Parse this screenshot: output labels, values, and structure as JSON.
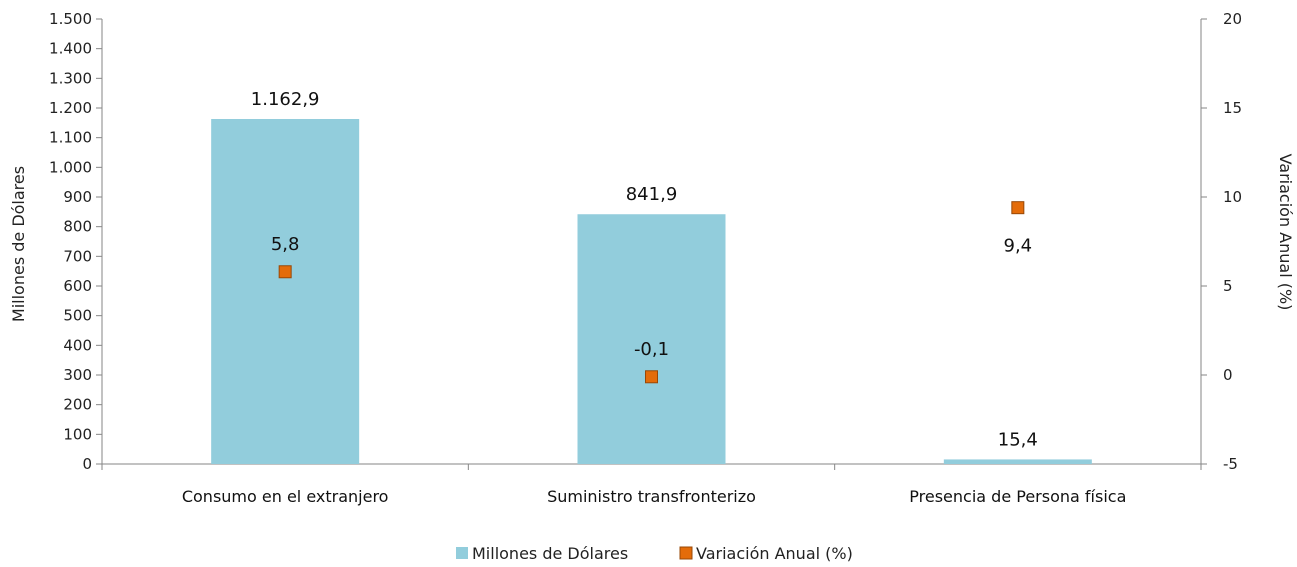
{
  "chart_data": {
    "type": "bar",
    "categories": [
      "Consumo en el extranjero",
      "Suministro transfronterizo",
      "Presencia de Persona física"
    ],
    "series": [
      {
        "name": "Millones de Dólares",
        "kind": "bar",
        "axis": "left",
        "values": [
          1162.9,
          841.9,
          15.4
        ],
        "labels": [
          "1.162,9",
          "841,9",
          "15,4"
        ],
        "color": "#92CDDC"
      },
      {
        "name": "Variación Anual (%)",
        "kind": "marker",
        "axis": "right",
        "values": [
          5.8,
          -0.1,
          9.4
        ],
        "labels": [
          "5,8",
          "-0,1",
          "9,4"
        ],
        "color": "#E46C0A",
        "border_color": "#984807"
      }
    ],
    "ylabel": "Millones de Dólares",
    "ylim": [
      0,
      1500
    ],
    "yticks": [
      0,
      100,
      200,
      300,
      400,
      500,
      600,
      700,
      800,
      900,
      1000,
      1100,
      1200,
      1300,
      1400,
      1500
    ],
    "ytick_labels": [
      "0",
      "100",
      "200",
      "300",
      "400",
      "500",
      "600",
      "700",
      "800",
      "900",
      "1.000",
      "1.100",
      "1.200",
      "1.300",
      "1.400",
      "1.500"
    ],
    "y2label": "Variación Anual (%)",
    "y2lim": [
      -5,
      20
    ],
    "y2ticks": [
      -5,
      0,
      5,
      10,
      15,
      20
    ],
    "y2tick_labels": [
      "-5",
      "0",
      "5",
      "10",
      "15",
      "20"
    ],
    "grid": false,
    "legend_position": "bottom-center"
  }
}
